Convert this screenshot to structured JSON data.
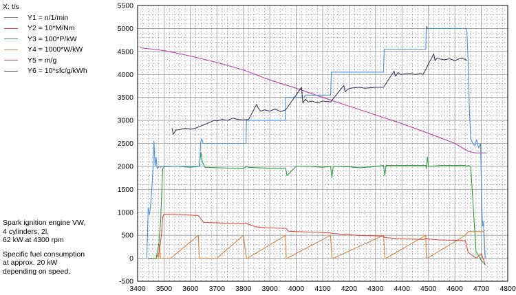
{
  "legend": {
    "title": "X: t/s",
    "items": [
      {
        "label": "Y1 = n/1/min",
        "color": "#4a90d9"
      },
      {
        "label": "Y2 = 10*M/Nm",
        "color": "#e04a3a"
      },
      {
        "label": "Y3 = 100*P/kW",
        "color": "#2f9a3f"
      },
      {
        "label": "Y4 = 1000*W/kW",
        "color": "#d9803a"
      },
      {
        "label": "Y5 = m/g",
        "color": "#c03ab0"
      },
      {
        "label": "Y6 = 10*sfc/g/kWh",
        "color": "#3a3a5a"
      }
    ]
  },
  "notes": {
    "engine": "Spark ignition engine VW,\n4 cylinders, 2l,\n62 kW at 4300 rpm",
    "consumption": "Specific fuel consumption\nat approx. 20 kW\ndepending on speed."
  },
  "chart_data": {
    "type": "line",
    "xlim": [
      3400,
      4800
    ],
    "ylim": [
      -500,
      5500
    ],
    "xticks": [
      3400,
      3500,
      3600,
      3700,
      3800,
      3900,
      4000,
      4100,
      4200,
      4300,
      4400,
      4500,
      4600,
      4700,
      4800
    ],
    "yticks": [
      -500,
      0,
      500,
      1000,
      1500,
      2000,
      2500,
      3000,
      3500,
      4000,
      4500,
      5000,
      5500
    ],
    "grid": true,
    "series": [
      {
        "name": "Y1 = n/1/min",
        "color": "#4a90d9",
        "x": [
          3435,
          3440,
          3445,
          3450,
          3455,
          3460,
          3462,
          3466,
          3470,
          3474,
          3480,
          3487,
          3495,
          3500,
          3525,
          3560,
          3600,
          3635,
          3638,
          3642,
          3648,
          3660,
          3700,
          3760,
          3810,
          3812,
          3850,
          3900,
          3958,
          3960,
          4000,
          4030,
          4035,
          4080,
          4130,
          4133,
          4180,
          4240,
          4290,
          4330,
          4333,
          4380,
          4420,
          4460,
          4490,
          4492,
          4498,
          4520,
          4600,
          4645,
          4650,
          4655,
          4660,
          4668,
          4675,
          4682,
          4690,
          4697,
          4702,
          4705,
          4708,
          4712,
          4715
        ],
        "y": [
          0,
          1100,
          950,
          1200,
          1600,
          2200,
          2550,
          2000,
          2200,
          1950,
          2000,
          1980,
          2000,
          2000,
          2000,
          2000,
          2000,
          2000,
          2500,
          2600,
          2500,
          2500,
          2500,
          2500,
          2500,
          3000,
          3000,
          3000,
          3000,
          3500,
          3500,
          3500,
          3550,
          3550,
          3550,
          4050,
          4050,
          4050,
          4050,
          4050,
          4550,
          4550,
          4550,
          4550,
          4550,
          5050,
          5000,
          5000,
          5000,
          5000,
          4300,
          3200,
          2600,
          2500,
          2450,
          2580,
          2400,
          2500,
          1200,
          700,
          800,
          200,
          0
        ]
      },
      {
        "name": "Y2 = 10*M/Nm",
        "color": "#e04a3a",
        "x": [
          3440,
          3470,
          3480,
          3490,
          3495,
          3500,
          3550,
          3600,
          3630,
          3650,
          3700,
          3750,
          3800,
          3810,
          3850,
          3900,
          3950,
          3962,
          3970,
          4000,
          4050,
          4100,
          4130,
          4140,
          4180,
          4230,
          4290,
          4330,
          4335,
          4380,
          4430,
          4480,
          4492,
          4500,
          4540,
          4600,
          4640,
          4650,
          4680,
          4700,
          4710,
          4715
        ],
        "y": [
          0,
          0,
          100,
          500,
          900,
          960,
          950,
          940,
          930,
          780,
          770,
          760,
          750,
          760,
          680,
          660,
          650,
          650,
          590,
          580,
          570,
          560,
          550,
          540,
          520,
          500,
          490,
          480,
          450,
          430,
          420,
          410,
          440,
          420,
          400,
          390,
          380,
          130,
          0,
          100,
          -50,
          -150
        ]
      },
      {
        "name": "Y3 = 100*P/kW",
        "color": "#2f9a3f",
        "x": [
          3440,
          3470,
          3480,
          3487,
          3495,
          3500,
          3550,
          3600,
          3633,
          3640,
          3645,
          3655,
          3700,
          3750,
          3800,
          3812,
          3820,
          3850,
          3900,
          3960,
          3965,
          4000,
          4050,
          4100,
          4130,
          4135,
          4140,
          4200,
          4240,
          4290,
          4330,
          4335,
          4340,
          4400,
          4460,
          4490,
          4492,
          4496,
          4500,
          4550,
          4600,
          4640,
          4645,
          4650,
          4660,
          4680,
          4700,
          4710,
          4715
        ],
        "y": [
          0,
          0,
          300,
          800,
          1950,
          1990,
          2000,
          1980,
          2000,
          2300,
          2100,
          1980,
          1970,
          1960,
          1950,
          2000,
          1980,
          1970,
          1960,
          1960,
          1800,
          2000,
          2000,
          1980,
          2000,
          1750,
          2000,
          1990,
          1970,
          1990,
          2020,
          1800,
          2020,
          2020,
          2020,
          2020,
          1950,
          2200,
          2000,
          2020,
          2020,
          2020,
          2000,
          2020,
          2000,
          150,
          -50,
          -100,
          -150
        ]
      },
      {
        "name": "Y4 = 1000*W/kW",
        "color": "#d9803a",
        "x": [
          3440,
          3480,
          3482,
          3487,
          3520,
          3525,
          3630,
          3633,
          3640,
          3700,
          3800,
          3812,
          3815,
          3960,
          3962,
          3965,
          4130,
          4135,
          4140,
          4330,
          4335,
          4340,
          4490,
          4492,
          4496,
          4640,
          4650,
          4710,
          4715
        ],
        "y": [
          0,
          0,
          300,
          0,
          0,
          0,
          500,
          0,
          0,
          0,
          500,
          0,
          0,
          500,
          0,
          0,
          500,
          0,
          0,
          500,
          0,
          0,
          500,
          0,
          0,
          500,
          580,
          580,
          0
        ]
      },
      {
        "name": "Y5 = m/g",
        "color": "#c03ab0",
        "x": [
          3410,
          3500,
          3600,
          3700,
          3800,
          3900,
          4000,
          4100,
          4200,
          4300,
          4400,
          4500,
          4600,
          4650,
          4680,
          4720
        ],
        "y": [
          4580,
          4520,
          4400,
          4260,
          4100,
          3880,
          3700,
          3500,
          3310,
          3120,
          2930,
          2720,
          2500,
          2330,
          2290,
          2290
        ]
      },
      {
        "name": "Y6 = 10*sfc/g/kWh",
        "color": "#3a3a5a",
        "x": [
          3530,
          3535,
          3545,
          3560,
          3580,
          3600,
          3620,
          3690,
          3700,
          3720,
          3740,
          3760,
          3780,
          3800,
          3820,
          3850,
          3855,
          3865,
          3880,
          3900,
          3920,
          3940,
          3960,
          4020,
          4025,
          4035,
          4045,
          4060,
          4080,
          4100,
          4120,
          4130,
          4180,
          4185,
          4195,
          4205,
          4220,
          4240,
          4260,
          4280,
          4300,
          4330,
          4370,
          4375,
          4385,
          4395,
          4410,
          4430,
          4450,
          4470,
          4480,
          4520,
          4525,
          4532,
          4540,
          4560,
          4580,
          4600,
          4620,
          4640,
          4645
        ],
        "y": [
          2830,
          2700,
          2790,
          2800,
          2830,
          2810,
          2830,
          3000,
          2990,
          3020,
          3000,
          3050,
          3020,
          3010,
          3020,
          3350,
          3280,
          3200,
          3230,
          3200,
          3250,
          3190,
          3230,
          3720,
          3380,
          3460,
          3400,
          3420,
          3380,
          3420,
          3410,
          3400,
          3760,
          3620,
          3680,
          3700,
          3710,
          3720,
          3700,
          3710,
          3720,
          3720,
          4070,
          3960,
          4040,
          4000,
          4010,
          4020,
          4000,
          4020,
          4000,
          4450,
          4300,
          4360,
          4340,
          4320,
          4340,
          4300,
          4350,
          4330,
          4300
        ]
      }
    ]
  }
}
